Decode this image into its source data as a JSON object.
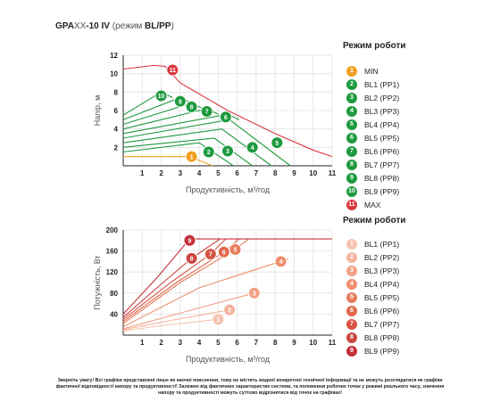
{
  "header": {
    "title_bold": "GPA",
    "title_light": "XX",
    "title_rest": "-10 IV",
    "title_mode": "(режим ",
    "title_mode_bold": "BL/PP",
    "title_close": ")"
  },
  "note": "Зверніть увагу! Всі графіки представлені лише як наочні пояснення, тому не містять жодної конкретної технічної інформації та не можуть розглядатися як графіки фактичної відповідності напору та продуктивності! Залежно від фактичних характеристик системи, та положення робочих точок у режимі реального часу, значення напору та продуктивності можуть суттєво відрізнятися від точок на графіках!",
  "legend_head": {
    "title": "Режим роботи",
    "items": [
      {
        "badge": "1",
        "label": "MIN",
        "color": "#f0a020"
      },
      {
        "badge": "2",
        "label": "BL1 (PP1)",
        "color": "#1e9a3e"
      },
      {
        "badge": "3",
        "label": "BL2 (PP2)",
        "color": "#1e9a3e"
      },
      {
        "badge": "4",
        "label": "BL3 (PP3)",
        "color": "#1e9a3e"
      },
      {
        "badge": "5",
        "label": "BL4 (PP4)",
        "color": "#1e9a3e"
      },
      {
        "badge": "6",
        "label": "BL5 (PP5)",
        "color": "#1e9a3e"
      },
      {
        "badge": "7",
        "label": "BL6 (PP6)",
        "color": "#1e9a3e"
      },
      {
        "badge": "8",
        "label": "BL7 (PP7)",
        "color": "#1e9a3e"
      },
      {
        "badge": "9",
        "label": "BL8 (PP8)",
        "color": "#1e9a3e"
      },
      {
        "badge": "10",
        "label": "BL9 (PP9)",
        "color": "#1e9a3e"
      },
      {
        "badge": "11",
        "label": "MAX",
        "color": "#d9363e"
      }
    ]
  },
  "legend_power": {
    "title": "Режим роботи",
    "items": [
      {
        "badge": "1",
        "label": "BL1 (PP1)",
        "color": "#f6c3b0"
      },
      {
        "badge": "2",
        "label": "BL2 (PP2)",
        "color": "#f4b39c"
      },
      {
        "badge": "3",
        "label": "BL3 (PP3)",
        "color": "#f1a185"
      },
      {
        "badge": "4",
        "label": "BL4 (PP4)",
        "color": "#ed8f6f"
      },
      {
        "badge": "5",
        "label": "BL5 (PP5)",
        "color": "#e87c5c"
      },
      {
        "badge": "6",
        "label": "BL6 (PP6)",
        "color": "#e0694e"
      },
      {
        "badge": "7",
        "label": "BL7 (PP7)",
        "color": "#d65444"
      },
      {
        "badge": "8",
        "label": "BL8 (PP8)",
        "color": "#cc4540"
      },
      {
        "badge": "9",
        "label": "BL9 (PP9)",
        "color": "#c4303a"
      }
    ]
  },
  "chart_data": [
    {
      "type": "line",
      "xlabel": "Продуктивність, м³/год",
      "ylabel": "Напір, м",
      "xlim": [
        0,
        11
      ],
      "ylim": [
        0,
        12
      ],
      "xticks": [
        1,
        2,
        3,
        4,
        5,
        6,
        7,
        8,
        9,
        10,
        11
      ],
      "yticks": [
        2,
        4,
        6,
        8,
        10,
        12
      ],
      "grid": true,
      "series": [
        {
          "badge": "1",
          "color": "#f0a020",
          "label_at": [
            3.6,
            1.0
          ],
          "x": [
            0,
            3.5,
            4.7
          ],
          "y": [
            1.0,
            1.0,
            0.0
          ]
        },
        {
          "badge": "2",
          "color": "#1e9a3e",
          "label_at": [
            4.5,
            1.5
          ],
          "x": [
            0,
            4.0,
            5.8
          ],
          "y": [
            1.5,
            2.5,
            0.0
          ]
        },
        {
          "badge": "3",
          "color": "#1e9a3e",
          "label_at": [
            5.5,
            1.6
          ],
          "x": [
            0,
            4.8,
            6.8
          ],
          "y": [
            2.0,
            3.0,
            0.0
          ]
        },
        {
          "badge": "4",
          "color": "#1e9a3e",
          "label_at": [
            6.8,
            2.0
          ],
          "x": [
            0,
            5.2,
            7.8
          ],
          "y": [
            2.5,
            4.0,
            0.0
          ]
        },
        {
          "badge": "5",
          "color": "#1e9a3e",
          "label_at": [
            8.1,
            2.5
          ],
          "x": [
            0,
            5.6,
            8.8
          ],
          "y": [
            3.0,
            5.0,
            0.0
          ]
        },
        {
          "badge": "6",
          "color": "#1e9a3e",
          "label_at": [
            5.4,
            5.3
          ],
          "x": [
            0,
            5.5,
            6.1
          ],
          "y": [
            3.5,
            5.6,
            5.0
          ]
        },
        {
          "badge": "7",
          "color": "#1e9a3e",
          "label_at": [
            4.4,
            5.9
          ],
          "x": [
            0,
            4.4,
            5.0
          ],
          "y": [
            4.0,
            6.2,
            5.6
          ]
        },
        {
          "badge": "8",
          "color": "#1e9a3e",
          "label_at": [
            3.6,
            6.4
          ],
          "x": [
            0,
            3.6,
            4.2
          ],
          "y": [
            4.5,
            6.8,
            6.2
          ]
        },
        {
          "badge": "9",
          "color": "#1e9a3e",
          "label_at": [
            3.0,
            7.0
          ],
          "x": [
            0,
            3.0,
            3.6
          ],
          "y": [
            5.0,
            7.4,
            6.8
          ]
        },
        {
          "badge": "10",
          "color": "#1e9a3e",
          "label_at": [
            2.0,
            7.6
          ],
          "x": [
            0,
            2.0,
            2.6
          ],
          "y": [
            5.5,
            8.0,
            7.4
          ]
        },
        {
          "badge": "11",
          "color": "#d9363e",
          "label_at": [
            2.6,
            10.4
          ],
          "x": [
            0,
            1.6,
            2.2,
            3.0,
            5.5,
            8.0,
            10.0,
            11.0
          ],
          "y": [
            10.5,
            10.9,
            10.8,
            9.0,
            6.0,
            3.5,
            1.7,
            1.0
          ]
        }
      ]
    },
    {
      "type": "line",
      "xlabel": "Продуктивність, м³/год",
      "ylabel": "Потужність, Вт",
      "xlim": [
        0,
        11
      ],
      "ylim": [
        0,
        200
      ],
      "xticks": [
        1,
        2,
        3,
        4,
        5,
        6,
        7,
        8,
        9,
        10,
        11
      ],
      "yticks": [
        40,
        80,
        120,
        160,
        200
      ],
      "grid": true,
      "series": [
        {
          "badge": "1",
          "color": "#f6c3b0",
          "label_at": [
            5.0,
            30
          ],
          "x": [
            0,
            2.0,
            5.0
          ],
          "y": [
            8,
            18,
            30
          ]
        },
        {
          "badge": "2",
          "color": "#f4b39c",
          "label_at": [
            5.6,
            48
          ],
          "x": [
            0,
            2.5,
            5.6
          ],
          "y": [
            10,
            28,
            48
          ]
        },
        {
          "badge": "3",
          "color": "#f1a185",
          "label_at": [
            6.9,
            80
          ],
          "x": [
            0,
            3.0,
            6.9
          ],
          "y": [
            12,
            42,
            80
          ]
        },
        {
          "badge": "4",
          "color": "#ed8f6f",
          "label_at": [
            8.3,
            140
          ],
          "x": [
            0,
            4.0,
            8.7
          ],
          "y": [
            16,
            90,
            145
          ]
        },
        {
          "badge": "5",
          "color": "#e87c5c",
          "label_at": [
            5.9,
            163
          ],
          "x": [
            0,
            3.0,
            5.9,
            6.6
          ],
          "y": [
            22,
            100,
            163,
            183
          ]
        },
        {
          "badge": "6",
          "color": "#e0694e",
          "label_at": [
            5.3,
            158
          ],
          "x": [
            0,
            2.8,
            5.3,
            6.1
          ],
          "y": [
            26,
            100,
            158,
            183
          ]
        },
        {
          "badge": "7",
          "color": "#d65444",
          "label_at": [
            4.6,
            154
          ],
          "x": [
            0,
            2.5,
            4.6,
            5.4
          ],
          "y": [
            30,
            100,
            154,
            183
          ]
        },
        {
          "badge": "8",
          "color": "#cc4540",
          "label_at": [
            3.6,
            146
          ],
          "x": [
            0,
            2.1,
            3.6,
            5.1
          ],
          "y": [
            34,
            100,
            146,
            183
          ]
        },
        {
          "badge": "9",
          "color": "#c4303a",
          "label_at": [
            3.5,
            180
          ],
          "x": [
            0,
            1.8,
            3.5,
            11.0
          ],
          "y": [
            40,
            110,
            183,
            183
          ]
        }
      ]
    }
  ]
}
